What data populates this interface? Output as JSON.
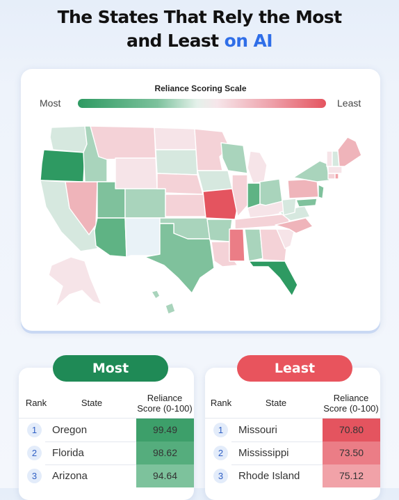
{
  "title": {
    "line1": "The States That Rely the Most",
    "line2_prefix": "and Least",
    "line2_accent": "on AI"
  },
  "scale": {
    "title": "Reliance Scoring Scale",
    "most_label": "Most",
    "least_label": "Least"
  },
  "colors": {
    "accent": "#2f6ee8",
    "most_green": "#1f8a56",
    "least_red": "#e8545d"
  },
  "tables": {
    "most": {
      "label": "Most",
      "headers": {
        "rank": "Rank",
        "state": "State",
        "score_line1": "Reliance",
        "score_line2": "Score (0-100)"
      },
      "rows": [
        {
          "rank": "1",
          "state": "Oregon",
          "score": "99.49",
          "color": "#3d9f6a"
        },
        {
          "rank": "2",
          "state": "Florida",
          "score": "98.62",
          "color": "#55ad7d"
        },
        {
          "rank": "3",
          "state": "Arizona",
          "score": "94.64",
          "color": "#7dc29c"
        }
      ]
    },
    "least": {
      "label": "Least",
      "headers": {
        "rank": "Rank",
        "state": "State",
        "score_line1": "Reliance",
        "score_line2": "Score (0-100)"
      },
      "rows": [
        {
          "rank": "1",
          "state": "Missouri",
          "score": "70.80",
          "color": "#e4545f"
        },
        {
          "rank": "2",
          "state": "Mississippi",
          "score": "73.50",
          "color": "#eb7d86"
        },
        {
          "rank": "3",
          "state": "Rhode Island",
          "score": "75.12",
          "color": "#f1a2a8"
        }
      ]
    }
  },
  "chart_data": {
    "type": "table",
    "title": "The States That Rely the Most and Least on AI",
    "value_label": "Reliance Score (0-100)",
    "legend": "Reliance Scoring Scale: Most (green) to Least (red)",
    "most": [
      {
        "rank": 1,
        "state": "Oregon",
        "score": 99.49
      },
      {
        "rank": 2,
        "state": "Florida",
        "score": 98.62
      },
      {
        "rank": 3,
        "state": "Arizona",
        "score": 94.64
      }
    ],
    "least": [
      {
        "rank": 1,
        "state": "Missouri",
        "score": 70.8
      },
      {
        "rank": 2,
        "state": "Mississippi",
        "score": 73.5
      },
      {
        "rank": 3,
        "state": "Rhode Island",
        "score": 75.12
      }
    ]
  }
}
